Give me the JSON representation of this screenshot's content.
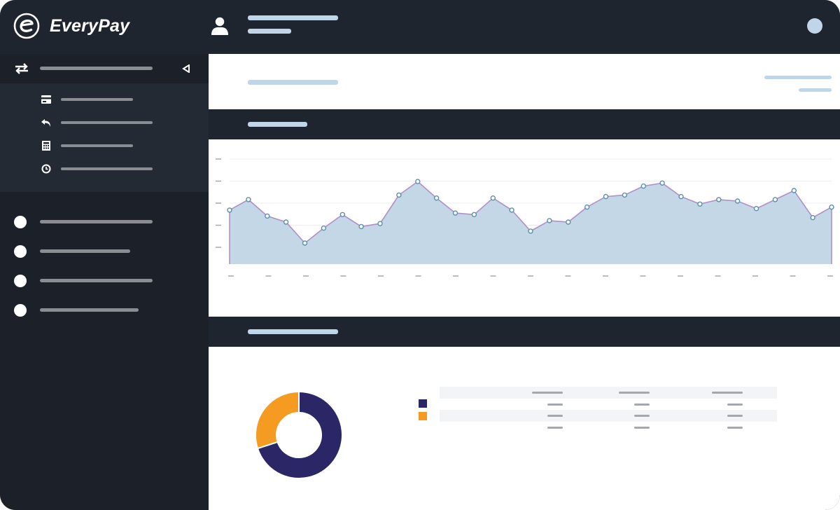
{
  "app": {
    "brand": "EveryPay",
    "logo_letter": "e"
  },
  "colors": {
    "topbar": "#1f252e",
    "sidebar": "#1c2028",
    "placeholder_light": "#c0d5e8",
    "placeholder_grey": "#8a8d92",
    "area_fill": "#c3d7e6",
    "area_line": "#b08fc6",
    "point_stroke": "#5b8fb1",
    "donut_primary": "#2b2665",
    "donut_secondary": "#f59b22"
  },
  "icons": {
    "brand": "everypay-logo-icon",
    "user": "user-icon",
    "transfer": "transfer-arrows-icon",
    "collapse": "caret-left-icon",
    "card": "credit-card-icon",
    "refund": "reply-arrow-icon",
    "calculator": "calculator-icon",
    "clock": "clock-icon"
  },
  "chart_data": {
    "type": "area",
    "y_tick_count": 5,
    "x_tick_count": 17,
    "grid": true,
    "values": [
      36,
      43,
      32,
      28,
      14,
      24,
      33,
      25,
      27,
      46,
      55,
      44,
      34,
      33,
      44,
      36,
      22,
      29,
      28,
      38,
      45,
      46,
      52,
      54,
      45,
      40,
      43,
      42,
      37,
      43,
      49,
      31,
      38
    ]
  },
  "donut_data": {
    "type": "pie",
    "values": [
      70,
      30
    ]
  }
}
